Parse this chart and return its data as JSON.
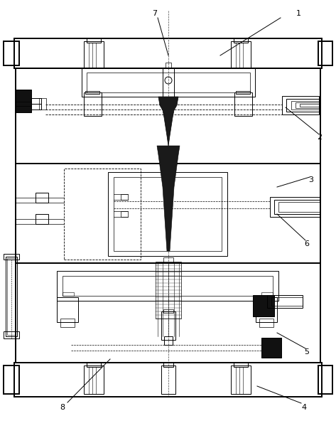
{
  "fig_w": 4.73,
  "fig_h": 6.23,
  "dpi": 100,
  "lc": "#000000",
  "bg": "#ffffff",
  "lw": 0.7,
  "tlw": 1.4
}
